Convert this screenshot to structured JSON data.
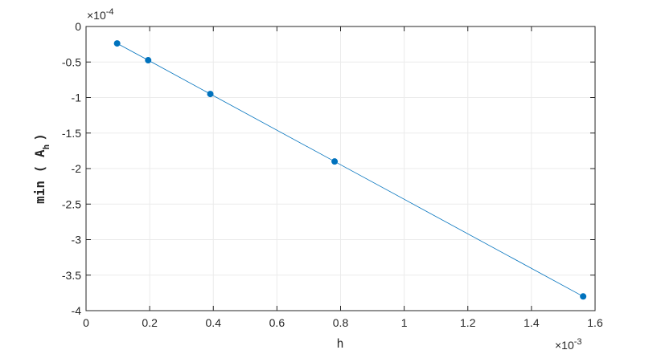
{
  "chart_data": {
    "type": "line",
    "xlabel": "h",
    "ylabel": {
      "prefix": "min ( A",
      "subscript": "h",
      "suffix": ")"
    },
    "x_exponent": {
      "base": "×10",
      "power": "-3"
    },
    "y_exponent": {
      "base": "×10",
      "power": "-4"
    },
    "xlim": [
      0,
      1.6
    ],
    "ylim": [
      -4,
      0
    ],
    "xticks": [
      0,
      0.2,
      0.4,
      0.6,
      0.8,
      1,
      1.2,
      1.4,
      1.6
    ],
    "yticks": [
      0,
      -0.5,
      -1,
      -1.5,
      -2,
      -2.5,
      -3,
      -3.5,
      -4
    ],
    "xtick_labels": [
      "0",
      "0.2",
      "0.4",
      "0.6",
      "0.8",
      "1",
      "1.2",
      "1.4",
      "1.6"
    ],
    "ytick_labels": [
      "0",
      "-0.5",
      "-1",
      "-1.5",
      "-2",
      "-2.5",
      "-3",
      "-3.5",
      "-4"
    ],
    "grid": true,
    "series": [
      {
        "x": [
          0.0977,
          0.1953,
          0.3906,
          0.7813,
          1.5625
        ],
        "y": [
          -0.238,
          -0.475,
          -0.95,
          -1.9,
          -3.8
        ],
        "marker": "circle",
        "color": "#0072BD"
      }
    ],
    "colors": {
      "series": "#0072BD",
      "grid": "#ebebeb",
      "axis": "#262626"
    }
  }
}
